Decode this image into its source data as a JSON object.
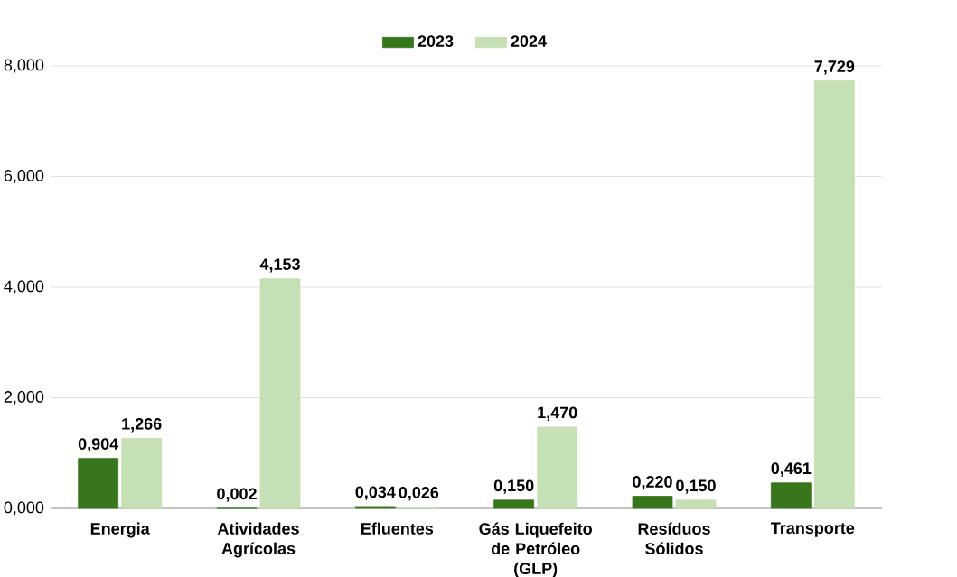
{
  "chart_data": {
    "type": "bar",
    "categories": [
      "Energia",
      "Atividades Agrícolas",
      "Efluentes",
      "Gás Liquefeito de Petróleo (GLP)",
      "Resíduos Sólidos",
      "Transporte"
    ],
    "series": [
      {
        "name": "2023",
        "color": "#38761d",
        "values": [
          0.904,
          0.002,
          0.034,
          0.15,
          0.22,
          0.461
        ],
        "value_labels": [
          "0,904",
          "0,002",
          "0,034",
          "0,150",
          "0,220",
          "0,461"
        ]
      },
      {
        "name": "2024",
        "color": "#c5e0b4",
        "values": [
          1.266,
          4.153,
          0.026,
          1.47,
          0.15,
          7.729
        ],
        "value_labels": [
          "1,266",
          "4,153",
          "0,026",
          "1,470",
          "0,150",
          "7,729"
        ]
      }
    ],
    "ylim": [
      0,
      8
    ],
    "yticks": [
      {
        "value": 0,
        "label": "0,000"
      },
      {
        "value": 2,
        "label": "2,000"
      },
      {
        "value": 4,
        "label": "4,000"
      },
      {
        "value": 6,
        "label": "6,000"
      },
      {
        "value": 8,
        "label": "8,000"
      }
    ],
    "grid": "y",
    "legend": "top"
  }
}
